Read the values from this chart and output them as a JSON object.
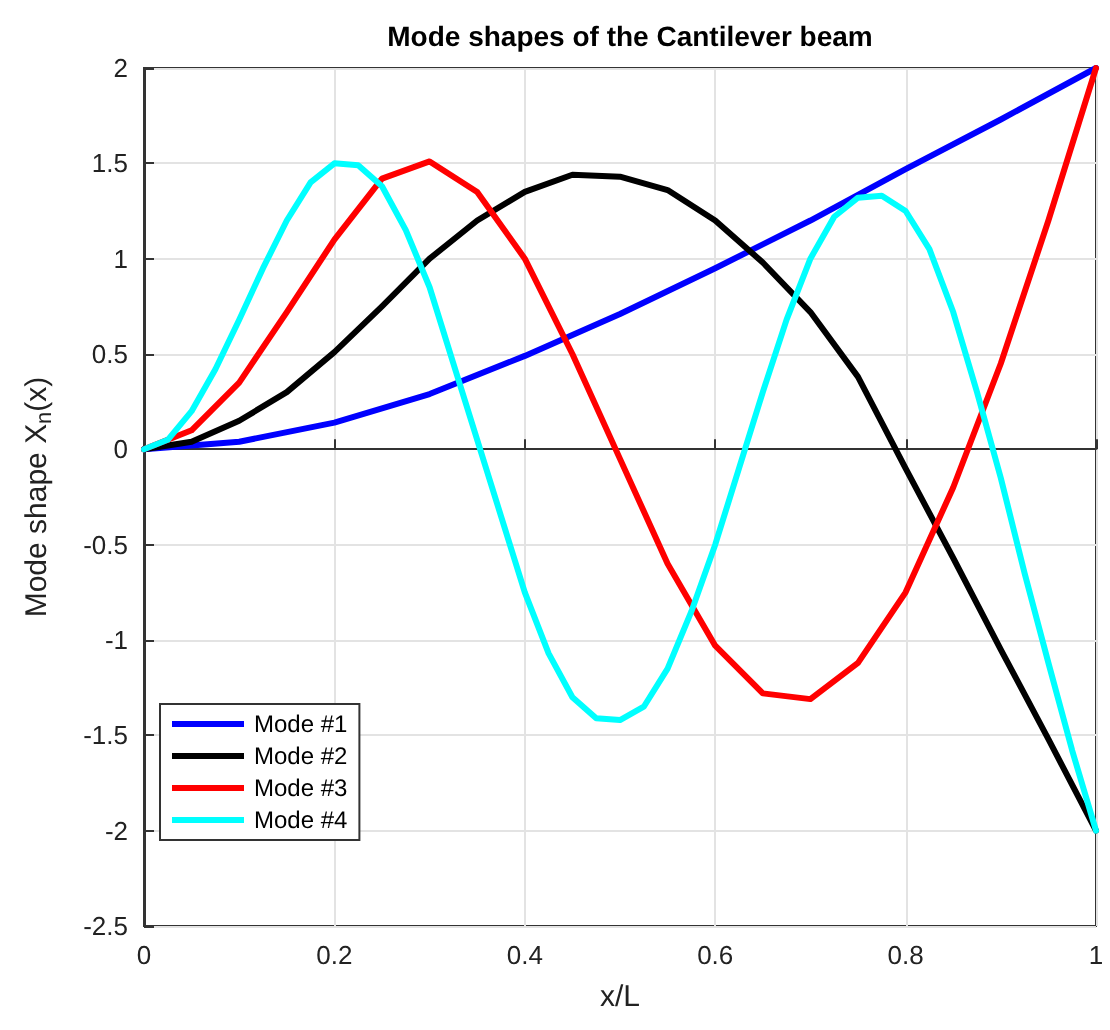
{
  "chart_data": {
    "type": "line",
    "title": "Mode shapes of the Cantilever beam",
    "xlabel": "x/L",
    "ylabel": "Mode shape X$_{n}$(x)",
    "xlim": [
      0,
      1
    ],
    "xticks": [
      0,
      0.2,
      0.4,
      0.6,
      0.8,
      1
    ],
    "ylim": [
      -2.5,
      2
    ],
    "yticks": [
      -2.5,
      -2,
      -1.5,
      -1,
      -0.5,
      0,
      0.5,
      1,
      1.5,
      2
    ],
    "grid": true,
    "legend": "bottom left",
    "marker": "none",
    "line_style": "solid",
    "series": [
      {
        "name": "Mode #1",
        "color": "#0000ff",
        "x": [
          0,
          0.1,
          0.2,
          0.3,
          0.4,
          0.5,
          0.6,
          0.7,
          0.8,
          0.9,
          1
        ],
        "values": [
          0,
          0.04,
          0.14,
          0.29,
          0.49,
          0.71,
          0.95,
          1.2,
          1.47,
          1.73,
          2
        ]
      },
      {
        "name": "Mode #2",
        "color": "#000000",
        "x": [
          0,
          0.05,
          0.1,
          0.15,
          0.2,
          0.25,
          0.3,
          0.35,
          0.4,
          0.45,
          0.5,
          0.55,
          0.6,
          0.65,
          0.7,
          0.75,
          0.8,
          0.85,
          0.9,
          0.95,
          1
        ],
        "values": [
          0,
          0.04,
          0.15,
          0.3,
          0.51,
          0.75,
          1.0,
          1.2,
          1.35,
          1.44,
          1.43,
          1.36,
          1.2,
          0.98,
          0.72,
          0.38,
          -0.1,
          -0.57,
          -1.05,
          -1.52,
          -2
        ]
      },
      {
        "name": "Mode #3",
        "color": "#ff0000",
        "x": [
          0,
          0.05,
          0.1,
          0.15,
          0.2,
          0.25,
          0.3,
          0.35,
          0.4,
          0.45,
          0.5,
          0.55,
          0.6,
          0.65,
          0.7,
          0.75,
          0.8,
          0.85,
          0.9,
          0.95,
          1
        ],
        "values": [
          0,
          0.1,
          0.35,
          0.72,
          1.1,
          1.42,
          1.51,
          1.35,
          1.0,
          0.5,
          -0.05,
          -0.6,
          -1.03,
          -1.28,
          -1.31,
          -1.12,
          -0.75,
          -0.2,
          0.45,
          1.2,
          2
        ]
      },
      {
        "name": "Mode #4",
        "color": "#00ffff",
        "x": [
          0,
          0.025,
          0.05,
          0.075,
          0.1,
          0.125,
          0.15,
          0.175,
          0.2,
          0.225,
          0.25,
          0.275,
          0.3,
          0.325,
          0.35,
          0.375,
          0.4,
          0.425,
          0.45,
          0.475,
          0.5,
          0.525,
          0.55,
          0.575,
          0.6,
          0.625,
          0.65,
          0.675,
          0.7,
          0.725,
          0.75,
          0.775,
          0.8,
          0.825,
          0.85,
          0.875,
          0.9,
          0.925,
          0.95,
          0.975,
          1
        ],
        "values": [
          0,
          0.05,
          0.2,
          0.42,
          0.68,
          0.95,
          1.2,
          1.4,
          1.5,
          1.49,
          1.38,
          1.15,
          0.85,
          0.45,
          0.05,
          -0.35,
          -0.75,
          -1.07,
          -1.3,
          -1.41,
          -1.42,
          -1.35,
          -1.15,
          -0.85,
          -0.5,
          -0.1,
          0.3,
          0.68,
          1.0,
          1.22,
          1.32,
          1.33,
          1.25,
          1.05,
          0.72,
          0.3,
          -0.15,
          -0.65,
          -1.12,
          -1.58,
          -2
        ]
      }
    ]
  }
}
